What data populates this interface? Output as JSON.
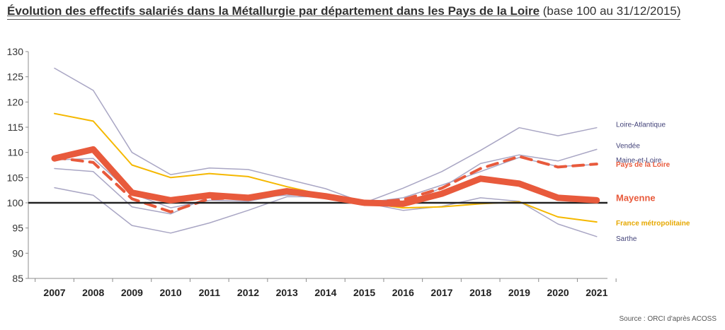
{
  "title": {
    "main": "Évolution des effectifs salariés dans la Métallurgie par département dans les Pays de la Loire",
    "sub": " (base 100 au 31/12/2015)"
  },
  "source": "Source : ORCI d'après ACOSS",
  "chart_data": {
    "type": "line",
    "x": [
      "2007",
      "2008",
      "2009",
      "2010",
      "2011",
      "2012",
      "2013",
      "2014",
      "2015",
      "2016",
      "2017",
      "2018",
      "2019",
      "2020",
      "2021"
    ],
    "ylim": [
      85,
      130
    ],
    "yticks": [
      85,
      90,
      95,
      100,
      105,
      110,
      115,
      120,
      125,
      130
    ],
    "reference_line": 100,
    "grid": false,
    "series": [
      {
        "name": "Loire-Atlantique",
        "color": "#a9a6c4",
        "style": "thin",
        "values": [
          126.7,
          122.3,
          110.0,
          105.6,
          106.9,
          106.6,
          104.7,
          102.8,
          100.0,
          102.9,
          106.2,
          110.4,
          114.9,
          113.3,
          114.9
        ]
      },
      {
        "name": "Vendée",
        "color": "#a9a6c4",
        "style": "thin",
        "values": [
          106.8,
          106.2,
          99.2,
          97.8,
          101.2,
          101.0,
          101.5,
          101.5,
          100.0,
          99.5,
          103.0,
          107.8,
          109.5,
          108.3,
          110.6
        ]
      },
      {
        "name": "Maine-et-Loire",
        "color": "#a9a6c4",
        "style": "thin",
        "values": [
          108.5,
          108.8,
          101.8,
          99.0,
          100.5,
          100.3,
          101.8,
          101.0,
          100.0,
          101.0,
          103.5,
          106.2,
          109.0,
          107.2,
          107.6
        ]
      },
      {
        "name": "Sarthe",
        "color": "#a9a6c4",
        "style": "thin",
        "values": [
          103.0,
          101.5,
          95.5,
          94.0,
          96.0,
          98.5,
          101.2,
          101.2,
          100.0,
          98.5,
          99.3,
          101.0,
          100.3,
          95.8,
          93.3
        ]
      },
      {
        "name": "France métropolitaine",
        "color": "#f5b800",
        "style": "medium",
        "values": [
          117.7,
          116.2,
          107.5,
          105.0,
          105.8,
          105.2,
          103.2,
          101.5,
          100.0,
          99.0,
          99.2,
          99.8,
          100.2,
          97.2,
          96.2
        ]
      },
      {
        "name": "Pays de la Loire",
        "color": "#e85a3c",
        "style": "dashed",
        "values": [
          109.0,
          108.0,
          100.8,
          98.2,
          100.8,
          101.0,
          102.2,
          101.6,
          100.0,
          100.6,
          102.9,
          106.8,
          109.2,
          107.1,
          107.7
        ]
      },
      {
        "name": "Mayenne",
        "color": "#e85a3c",
        "style": "thick",
        "values": [
          108.8,
          110.6,
          102.0,
          100.5,
          101.5,
          101.0,
          102.3,
          101.3,
          100.0,
          99.8,
          101.8,
          104.8,
          103.8,
          101.0,
          100.5
        ]
      }
    ],
    "labels": [
      {
        "series": "Loire-Atlantique",
        "text": "Loire-Atlantique",
        "color": "#44447a",
        "bold": false
      },
      {
        "series": "Vendée",
        "text": "Vendée",
        "color": "#44447a",
        "bold": false
      },
      {
        "series": "Maine-et-Loire",
        "text": "Maine-et-Loire",
        "color": "#44447a",
        "bold": false
      },
      {
        "series": "Pays de la Loire",
        "text": "Pays de la Loire",
        "color": "#e85a3c",
        "bold": true
      },
      {
        "series": "Mayenne",
        "text": "Mayenne",
        "color": "#e85a3c",
        "bold": true
      },
      {
        "series": "France métropolitaine",
        "text": "France métropolitaine",
        "color": "#e6a800",
        "bold": true
      },
      {
        "series": "Sarthe",
        "text": "Sarthe",
        "color": "#44447a",
        "bold": false
      }
    ]
  }
}
